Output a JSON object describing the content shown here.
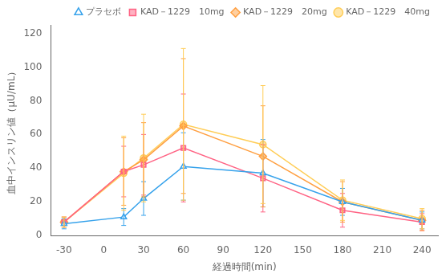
{
  "chart_data": {
    "type": "line",
    "xlabel": "経過時間(min)",
    "ylabel": "血中インスリン値（μU/mL）",
    "x": [
      -30,
      15,
      30,
      60,
      120,
      180,
      240
    ],
    "series": [
      {
        "name": "プラセボ",
        "marker": "triangle-open",
        "values": [
          7,
          11,
          22,
          41,
          37,
          20,
          9
        ],
        "errors": [
          3,
          5,
          10,
          20,
          20,
          8,
          5
        ]
      },
      {
        "name": "KAD－1229　10mg",
        "marker": "square",
        "values": [
          8,
          38,
          42,
          52,
          34,
          15,
          8
        ],
        "errors": [
          3,
          15,
          18,
          32,
          20,
          10,
          5
        ]
      },
      {
        "name": "KAD－1229　20mg",
        "marker": "diamond",
        "values": [
          8,
          38,
          45,
          65,
          47,
          20,
          9
        ],
        "errors": [
          3,
          20,
          22,
          40,
          30,
          12,
          6
        ]
      },
      {
        "name": "KAD－1229　40mg",
        "marker": "circle",
        "values": [
          8,
          37,
          46,
          66,
          54,
          21,
          10
        ],
        "errors": [
          3,
          22,
          26,
          45,
          35,
          12,
          6
        ]
      }
    ],
    "xlim": [
      -40,
      252
    ],
    "ylim": [
      0,
      125
    ],
    "xticks": [
      -30,
      0,
      30,
      60,
      90,
      120,
      150,
      180,
      210,
      240
    ],
    "yticks": [
      0,
      20,
      40,
      60,
      80,
      100,
      120
    ],
    "grid": false,
    "legend": "upper right"
  }
}
